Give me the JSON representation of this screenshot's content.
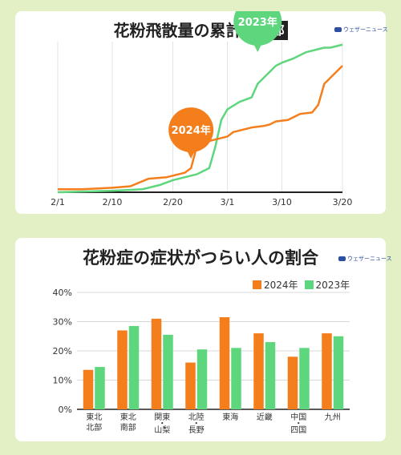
{
  "brand": "ウェザーニュース",
  "colors": {
    "y2024": "#f57e1c",
    "y2023": "#5ed67e"
  },
  "chart_data": [
    {
      "type": "line",
      "title": "花粉飛散量の累計",
      "title_badge": "東京都",
      "x_ticks": [
        "2/1",
        "2/10",
        "2/20",
        "3/1",
        "3/10",
        "3/20"
      ],
      "xlim": [
        "2/1",
        "3/20"
      ],
      "y_axis_labels": false,
      "grid": "vertical",
      "series": [
        {
          "name": "2024年",
          "x": [
            "2/1",
            "2/5",
            "2/10",
            "2/13",
            "2/16",
            "2/19",
            "2/22",
            "2/23",
            "2/24",
            "2/25",
            "2/26",
            "2/27",
            "3/1",
            "3/2",
            "3/4",
            "3/5",
            "3/7",
            "3/8",
            "3/9",
            "3/11",
            "3/13",
            "3/15",
            "3/16",
            "3/17",
            "3/18",
            "3/19",
            "3/20"
          ],
          "values": [
            2,
            2,
            3,
            4,
            9,
            10,
            13,
            16,
            31,
            34,
            34,
            35,
            37,
            40,
            42,
            43,
            44,
            45,
            47,
            48,
            52,
            53,
            58,
            72,
            76,
            80,
            84
          ]
        },
        {
          "name": "2023年",
          "x": [
            "2/1",
            "2/10",
            "2/15",
            "2/18",
            "2/20",
            "2/22",
            "2/24",
            "2/25",
            "2/26",
            "2/27",
            "2/28",
            "3/1",
            "3/3",
            "3/5",
            "3/6",
            "3/8",
            "3/9",
            "3/10",
            "3/12",
            "3/14",
            "3/16",
            "3/17",
            "3/18",
            "3/20"
          ],
          "values": [
            0,
            1,
            2,
            5,
            8,
            10,
            12,
            14,
            16,
            30,
            48,
            55,
            60,
            63,
            72,
            80,
            84,
            86,
            89,
            93,
            95,
            96,
            96,
            98
          ]
        }
      ],
      "annotations": [
        {
          "label": "2024年",
          "series": "2024年"
        },
        {
          "label": "2023年",
          "series": "2023年"
        }
      ]
    },
    {
      "type": "bar",
      "title": "花粉症の症状がつらい人の割合",
      "categories": [
        "東北\n北部",
        "東北\n南部",
        "関東\n・\n山梨",
        "北陸\n・\n長野",
        "東海",
        "近畿",
        "中国\n・\n四国",
        "九州"
      ],
      "ylim": [
        0,
        40
      ],
      "y_ticks": [
        "0%",
        "10%",
        "20%",
        "30%",
        "40%"
      ],
      "grid": "horizontal",
      "legend": "top-right",
      "series": [
        {
          "name": "2024年",
          "values": [
            13.5,
            27,
            31,
            16,
            31.5,
            26,
            18,
            26
          ]
        },
        {
          "name": "2023年",
          "values": [
            14.5,
            28.5,
            25.5,
            20.5,
            21,
            23,
            21,
            25
          ]
        }
      ]
    }
  ]
}
